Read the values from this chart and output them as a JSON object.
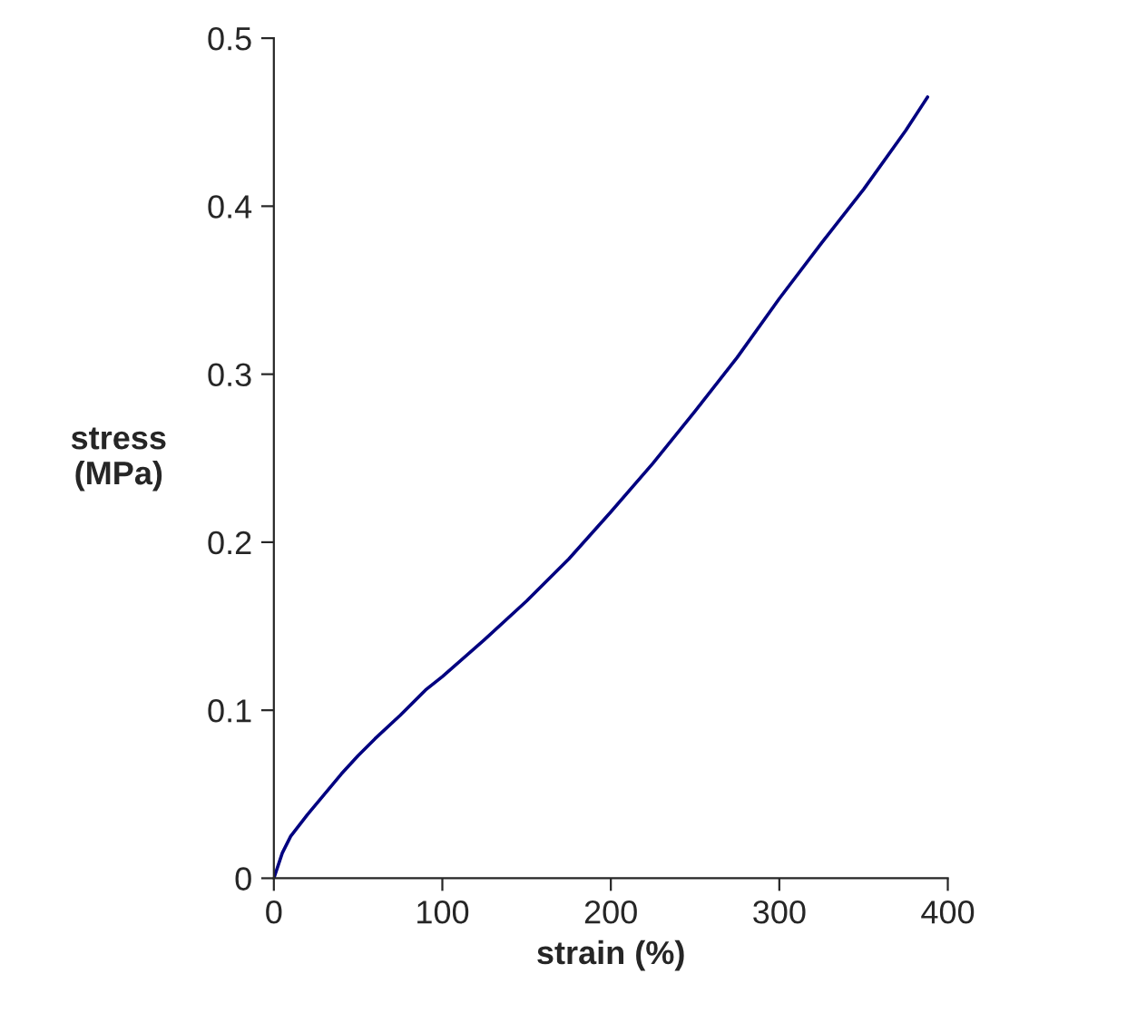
{
  "chart_data": {
    "type": "line",
    "xlabel": "strain (%)",
    "ylabel": "stress\n(MPa)",
    "series": [
      {
        "color": "#000080",
        "x": [
          0,
          5,
          10,
          20,
          30,
          40,
          50,
          60,
          75,
          90,
          100,
          125,
          150,
          175,
          200,
          225,
          250,
          275,
          300,
          325,
          350,
          375,
          388
        ],
        "values": [
          0,
          0.015,
          0.025,
          0.038,
          0.05,
          0.062,
          0.073,
          0.083,
          0.097,
          0.112,
          0.12,
          0.142,
          0.165,
          0.19,
          0.218,
          0.247,
          0.278,
          0.31,
          0.345,
          0.378,
          0.41,
          0.445,
          0.465
        ]
      }
    ],
    "xlim": [
      0,
      400
    ],
    "xticks": [
      0,
      100,
      200,
      300,
      400
    ],
    "ylim": [
      0,
      0.5
    ],
    "yticks": [
      0,
      0.1,
      0.2,
      0.3,
      0.4,
      0.5
    ],
    "grid": false,
    "legend": false,
    "marker": "none",
    "line_style": "solid"
  }
}
